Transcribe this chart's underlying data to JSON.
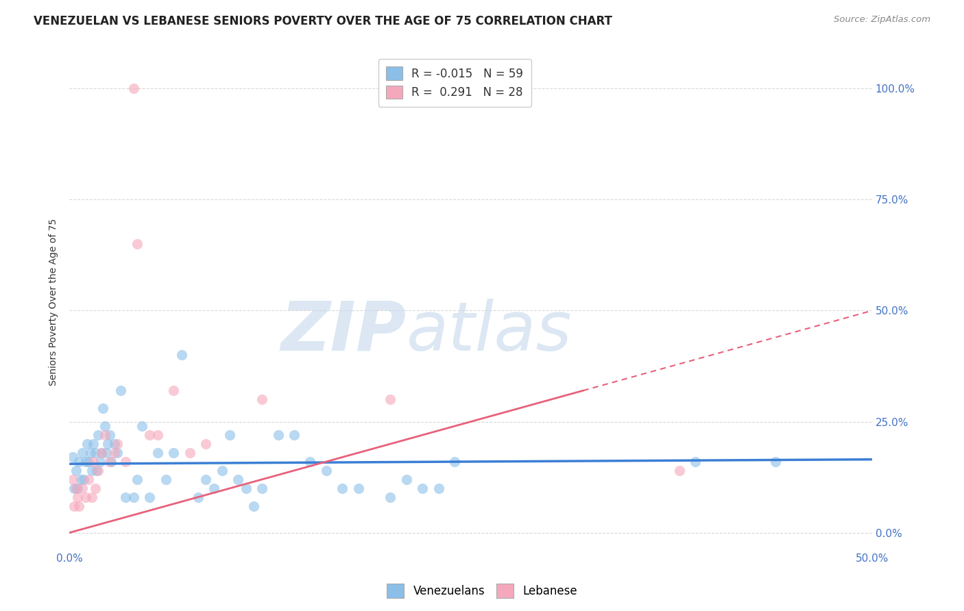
{
  "title": "VENEZUELAN VS LEBANESE SENIORS POVERTY OVER THE AGE OF 75 CORRELATION CHART",
  "source": "Source: ZipAtlas.com",
  "ylabel": "Seniors Poverty Over the Age of 75",
  "xlim": [
    0,
    0.5
  ],
  "ylim": [
    -0.04,
    1.08
  ],
  "ytick_vals": [
    0.0,
    0.25,
    0.5,
    0.75,
    1.0
  ],
  "ytick_labels": [
    "0.0%",
    "25.0%",
    "50.0%",
    "75.0%",
    "100.0%"
  ],
  "xtick_vals": [
    0.0,
    0.5
  ],
  "xtick_labels": [
    "0.0%",
    "50.0%"
  ],
  "venezuelan_color": "#8bbfe8",
  "lebanese_color": "#f5a8bc",
  "trend_blue_color": "#3b7fd4",
  "trend_pink_color": "#e8607a",
  "venezuelan_x": [
    0.002,
    0.003,
    0.004,
    0.005,
    0.006,
    0.007,
    0.008,
    0.009,
    0.01,
    0.011,
    0.012,
    0.013,
    0.014,
    0.015,
    0.016,
    0.017,
    0.018,
    0.019,
    0.02,
    0.021,
    0.022,
    0.023,
    0.024,
    0.025,
    0.026,
    0.028,
    0.03,
    0.032,
    0.035,
    0.04,
    0.042,
    0.045,
    0.05,
    0.055,
    0.06,
    0.065,
    0.07,
    0.08,
    0.085,
    0.09,
    0.095,
    0.1,
    0.105,
    0.11,
    0.115,
    0.12,
    0.13,
    0.14,
    0.15,
    0.16,
    0.17,
    0.18,
    0.2,
    0.21,
    0.22,
    0.23,
    0.24,
    0.39,
    0.44
  ],
  "venezuelan_y": [
    0.17,
    0.1,
    0.14,
    0.1,
    0.16,
    0.12,
    0.18,
    0.12,
    0.16,
    0.2,
    0.16,
    0.18,
    0.14,
    0.2,
    0.18,
    0.14,
    0.22,
    0.16,
    0.18,
    0.28,
    0.24,
    0.18,
    0.2,
    0.22,
    0.16,
    0.2,
    0.18,
    0.32,
    0.08,
    0.08,
    0.12,
    0.24,
    0.08,
    0.18,
    0.12,
    0.18,
    0.4,
    0.08,
    0.12,
    0.1,
    0.14,
    0.22,
    0.12,
    0.1,
    0.06,
    0.1,
    0.22,
    0.22,
    0.16,
    0.14,
    0.1,
    0.1,
    0.08,
    0.12,
    0.1,
    0.1,
    0.16,
    0.16,
    0.16
  ],
  "lebanese_x": [
    0.002,
    0.003,
    0.004,
    0.005,
    0.006,
    0.008,
    0.01,
    0.012,
    0.014,
    0.015,
    0.016,
    0.018,
    0.02,
    0.022,
    0.025,
    0.028,
    0.03,
    0.035,
    0.04,
    0.042,
    0.05,
    0.055,
    0.065,
    0.075,
    0.085,
    0.12,
    0.2,
    0.38
  ],
  "lebanese_y": [
    0.12,
    0.06,
    0.1,
    0.08,
    0.06,
    0.1,
    0.08,
    0.12,
    0.08,
    0.16,
    0.1,
    0.14,
    0.18,
    0.22,
    0.16,
    0.18,
    0.2,
    0.16,
    1.0,
    0.65,
    0.22,
    0.22,
    0.32,
    0.18,
    0.2,
    0.3,
    0.3,
    0.14
  ],
  "watermark_zip": "ZIP",
  "watermark_atlas": "atlas",
  "watermark_color_zip": "#c5d8ec",
  "watermark_color_atlas": "#c5d8ec",
  "background_color": "#ffffff",
  "grid_color": "#d8d8d8",
  "title_fontsize": 12,
  "axis_label_fontsize": 10,
  "tick_fontsize": 11,
  "legend_fontsize": 12,
  "legend_r_venezuelan": "-0.015",
  "legend_n_venezuelan": "59",
  "legend_r_lebanese": "0.291",
  "legend_n_lebanese": "28"
}
